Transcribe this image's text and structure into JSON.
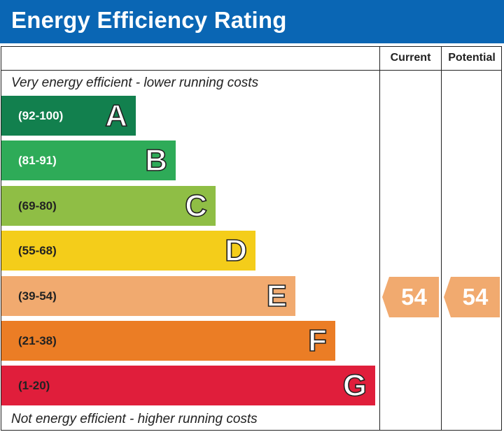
{
  "chart_data": {
    "type": "bar",
    "title": "Energy Efficiency Rating",
    "column_headers": {
      "current": "Current",
      "potential": "Potential"
    },
    "top_caption": "Very energy efficient - lower running costs",
    "bottom_caption": "Not energy efficient - higher running costs",
    "bands": [
      {
        "letter": "A",
        "range": "(92-100)",
        "min": 92,
        "max": 100,
        "color": "#12804e",
        "range_color": "#ffffff"
      },
      {
        "letter": "B",
        "range": "(81-91)",
        "min": 81,
        "max": 91,
        "color": "#2eab58",
        "range_color": "#ffffff"
      },
      {
        "letter": "C",
        "range": "(69-80)",
        "min": 69,
        "max": 80,
        "color": "#8fbe45",
        "range_color": "#222222"
      },
      {
        "letter": "D",
        "range": "(55-68)",
        "min": 55,
        "max": 68,
        "color": "#f4cd1a",
        "range_color": "#222222"
      },
      {
        "letter": "E",
        "range": "(39-54)",
        "min": 39,
        "max": 54,
        "color": "#f1aa6f",
        "range_color": "#222222"
      },
      {
        "letter": "F",
        "range": "(21-38)",
        "min": 21,
        "max": 38,
        "color": "#eb7d25",
        "range_color": "#222222"
      },
      {
        "letter": "G",
        "range": "(1-20)",
        "min": 1,
        "max": 20,
        "color": "#e01e3b",
        "range_color": "#222222"
      }
    ],
    "current": {
      "value": 54,
      "band": "E",
      "color": "#f1aa6f"
    },
    "potential": {
      "value": 54,
      "band": "E",
      "color": "#f1aa6f"
    }
  }
}
